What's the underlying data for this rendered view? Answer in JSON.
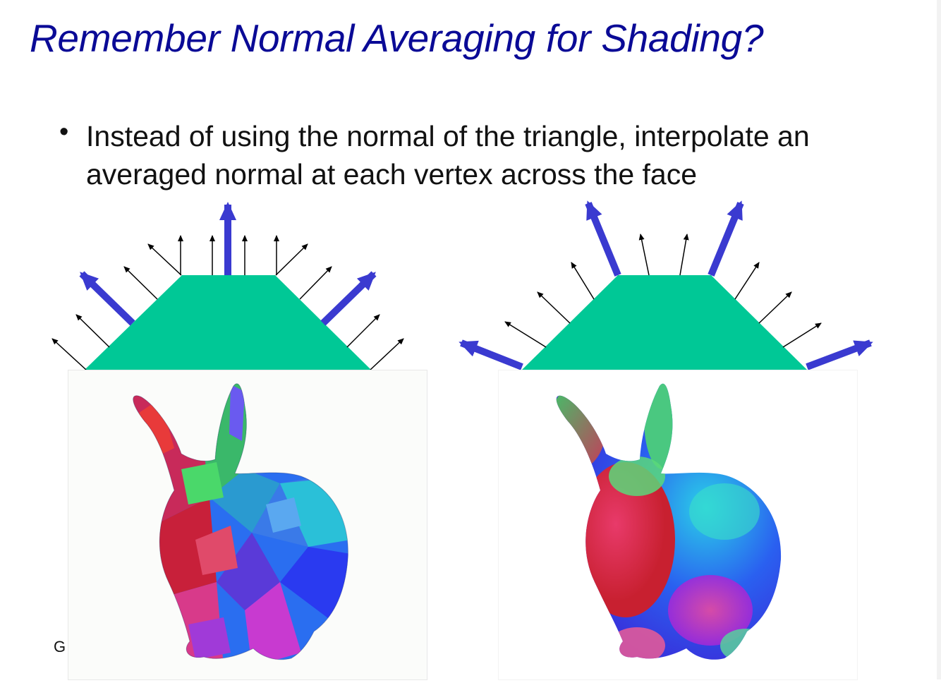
{
  "slide": {
    "title": "Remember Normal Averaging for Shading?",
    "bullet": "Instead of using the normal of the triangle, interpolate an averaged normal at each vertex across the face",
    "footer_fragment": "G"
  },
  "colors": {
    "title": "#0a0a96",
    "shape_fill": "#00c896",
    "bold_arrow": "#3a3ad0",
    "thin_arrow": "#000000"
  },
  "figures": {
    "left": {
      "shape": "trapezoid",
      "normals": "per-face"
    },
    "right": {
      "shape": "trapezoid",
      "normals": "averaged per-vertex"
    }
  },
  "renders": {
    "left": {
      "subject": "bunny",
      "shading": "flat"
    },
    "right": {
      "subject": "bunny",
      "shading": "smooth"
    }
  }
}
